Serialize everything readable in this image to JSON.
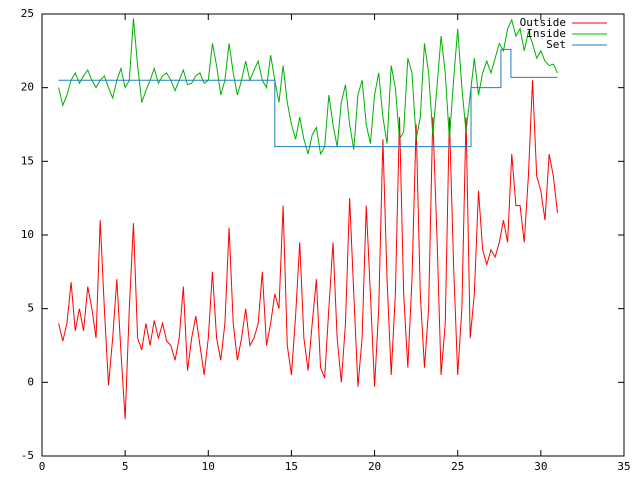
{
  "chart_data": {
    "type": "line",
    "x": [
      1,
      1.25,
      1.5,
      1.75,
      2,
      2.25,
      2.5,
      2.75,
      3,
      3.25,
      3.5,
      3.75,
      4,
      4.25,
      4.5,
      4.75,
      5,
      5.25,
      5.5,
      5.75,
      6,
      6.25,
      6.5,
      6.75,
      7,
      7.25,
      7.5,
      7.75,
      8,
      8.25,
      8.5,
      8.75,
      9,
      9.25,
      9.5,
      9.75,
      10,
      10.25,
      10.5,
      10.75,
      11,
      11.25,
      11.5,
      11.75,
      12,
      12.25,
      12.5,
      12.75,
      13,
      13.25,
      13.5,
      13.75,
      14,
      14.25,
      14.5,
      14.75,
      15,
      15.25,
      15.5,
      15.75,
      16,
      16.25,
      16.5,
      16.75,
      17,
      17.25,
      17.5,
      17.75,
      18,
      18.25,
      18.5,
      18.75,
      19,
      19.25,
      19.5,
      19.75,
      20,
      20.25,
      20.5,
      20.75,
      21,
      21.25,
      21.5,
      21.75,
      22,
      22.25,
      22.5,
      22.75,
      23,
      23.25,
      23.5,
      23.75,
      24,
      24.25,
      24.5,
      24.75,
      25,
      25.25,
      25.5,
      25.75,
      26,
      26.25,
      26.5,
      26.75,
      27,
      27.25,
      27.5,
      27.75,
      28,
      28.25,
      28.5,
      28.75,
      29,
      29.25,
      29.5,
      29.75,
      30,
      30.25,
      30.5,
      30.75,
      31
    ],
    "series": [
      {
        "name": "Outside",
        "color": "#ff0000",
        "values": [
          4,
          2.8,
          4,
          6.8,
          3.5,
          5,
          3.5,
          6.5,
          5,
          3,
          11,
          5,
          -0.2,
          3,
          7,
          2,
          -2.5,
          5,
          10.8,
          3,
          2.2,
          4,
          2.5,
          4.2,
          3,
          4,
          2.8,
          2.5,
          1.5,
          3,
          6.5,
          0.8,
          3,
          4.5,
          2.5,
          0.5,
          3,
          7.5,
          3,
          1.5,
          4,
          10.5,
          4,
          1.5,
          3,
          5,
          2.5,
          3,
          4,
          7.5,
          2.5,
          4,
          6,
          5,
          12,
          2.5,
          0.5,
          4.5,
          9.5,
          3,
          0.8,
          4,
          7,
          1,
          0.3,
          5,
          9.5,
          3,
          0,
          4,
          12.5,
          6,
          -0.3,
          3,
          12,
          6,
          -0.3,
          5,
          16.5,
          7,
          0.5,
          6,
          18,
          6,
          1,
          7,
          17.5,
          6,
          1,
          5,
          18,
          10,
          0.5,
          4,
          18,
          8,
          0.5,
          5,
          18,
          3,
          6,
          13,
          9,
          8,
          9,
          8.5,
          9.5,
          11,
          9.5,
          15.5,
          12,
          12,
          9.5,
          14,
          20.5,
          14,
          13,
          11,
          15.5,
          14,
          11.5
        ]
      },
      {
        "name": "Inside",
        "color": "#00b000",
        "values": [
          20,
          18.8,
          19.5,
          20.5,
          21,
          20.3,
          20.8,
          21.2,
          20.5,
          20,
          20.5,
          20.8,
          20,
          19.3,
          20.5,
          21.3,
          20,
          20.5,
          24.7,
          21.5,
          19,
          19.8,
          20.5,
          21.3,
          20.3,
          20.8,
          21,
          20.5,
          19.8,
          20.5,
          21.2,
          20.2,
          20.3,
          20.8,
          21,
          20.3,
          20.5,
          23,
          21.5,
          19.5,
          20.5,
          23,
          21,
          19.5,
          20.5,
          21.8,
          20.5,
          21.2,
          21.8,
          20.5,
          20,
          22.2,
          20.5,
          19,
          21.5,
          19,
          17.5,
          16.5,
          18,
          16.5,
          15.5,
          16.8,
          17.3,
          15.5,
          16,
          19.5,
          17.5,
          16,
          19,
          20.2,
          17.5,
          15.8,
          19.5,
          20.5,
          17.5,
          16.2,
          19.5,
          21,
          18,
          16.2,
          21.5,
          20,
          16.5,
          17,
          22,
          21,
          16.5,
          18,
          23,
          21,
          16.8,
          20,
          23.5,
          21,
          16.5,
          20.5,
          24,
          20,
          17,
          19.5,
          22,
          19.5,
          21,
          21.8,
          21,
          22,
          23,
          22.5,
          24,
          24.6,
          23.5,
          24,
          22.5,
          23.8,
          23,
          22,
          22.5,
          21.8,
          21.5,
          21.6,
          21
        ]
      },
      {
        "name": "Set",
        "color": "#1a7fc4",
        "x": [
          1,
          14,
          14,
          25.8,
          25.8,
          27.6,
          27.6,
          28.2,
          28.2,
          31
        ],
        "values": [
          20.5,
          20.5,
          16,
          16,
          20,
          20,
          22.6,
          22.6,
          20.7,
          20.7
        ]
      }
    ],
    "xlim": [
      0,
      35
    ],
    "xticks": [
      0,
      5,
      10,
      15,
      20,
      25,
      30,
      35
    ],
    "ylim": [
      -5,
      25
    ],
    "yticks": [
      -5,
      0,
      5,
      10,
      15,
      20,
      25
    ],
    "grid": false,
    "legend": "top-right"
  }
}
